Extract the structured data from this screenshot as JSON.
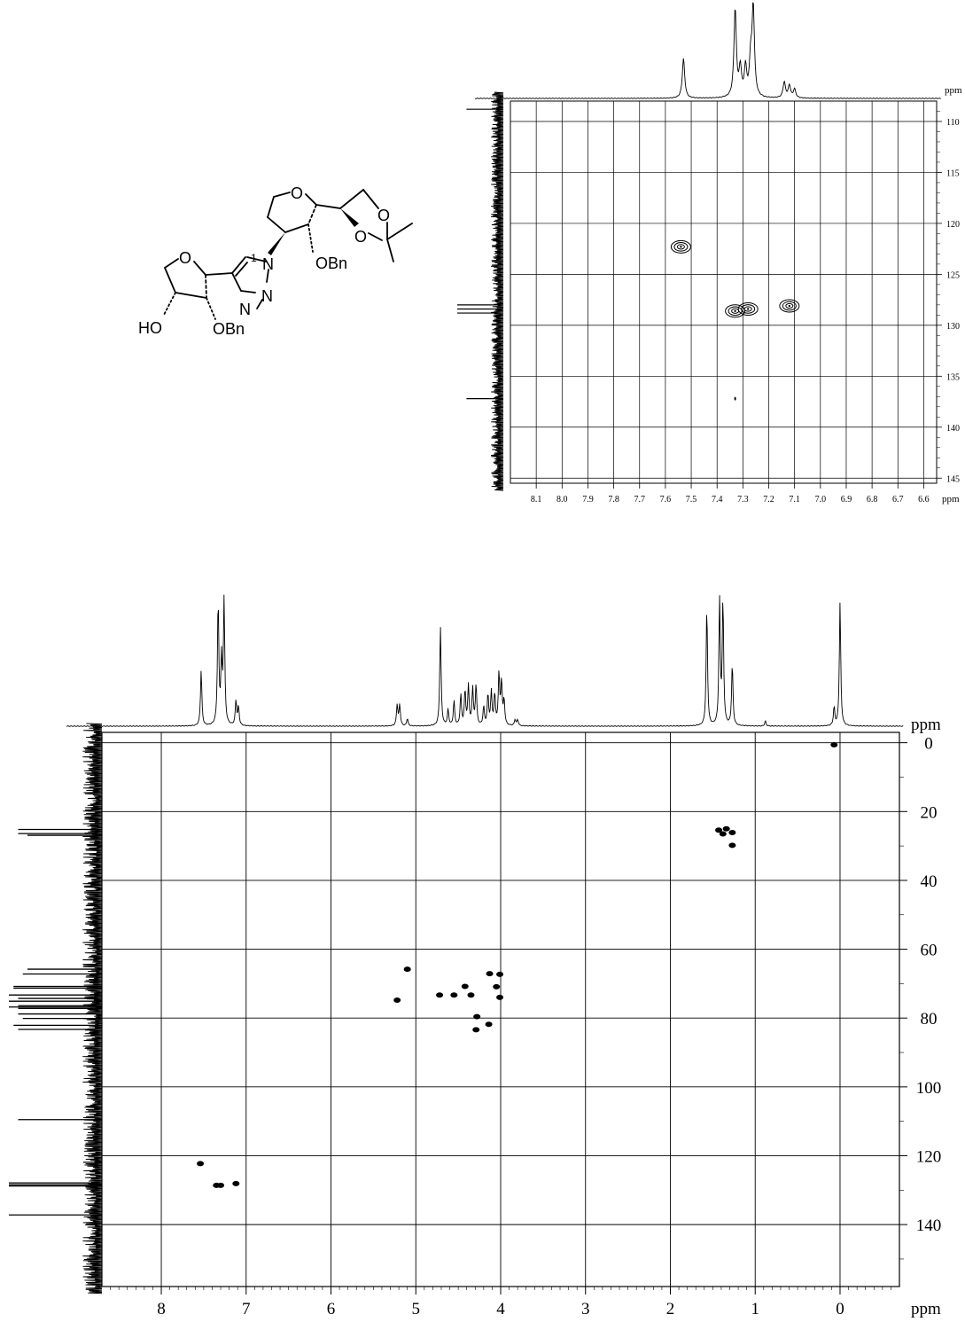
{
  "molecule": {
    "labels": {
      "o_ring_top": "O",
      "o_acetonide_1": "O",
      "o_acetonide_2": "O",
      "n1": "N",
      "n2": "N",
      "n3": "N",
      "one_prime": "1",
      "obn_top": "OBn",
      "o_ring_bottom": "O",
      "ho": "HO",
      "obn_bottom": "OBn"
    }
  },
  "chart_data": [
    {
      "type": "scatter",
      "title": "",
      "xlabel": "ppm",
      "ylabel": "ppm",
      "x_unit": "ppm",
      "y_unit": "ppm",
      "xlim": [
        8.2,
        6.55
      ],
      "ylim": [
        108,
        145.5
      ],
      "x_ticks": [
        "8.1",
        "8.0",
        "7.9",
        "7.8",
        "7.7",
        "7.6",
        "7.5",
        "7.4",
        "7.3",
        "7.2",
        "7.1",
        "7.0",
        "6.9",
        "6.8",
        "6.7",
        "6.6"
      ],
      "y_ticks": [
        "110",
        "115",
        "120",
        "125",
        "130",
        "135",
        "140",
        "145"
      ],
      "grid": true,
      "cross_peaks": [
        {
          "x": 7.54,
          "y": 122.3,
          "style": "contour"
        },
        {
          "x": 7.33,
          "y": 128.6,
          "style": "contour"
        },
        {
          "x": 7.28,
          "y": 128.4,
          "style": "contour"
        },
        {
          "x": 7.12,
          "y": 128.1,
          "style": "contour"
        },
        {
          "x": 7.33,
          "y": 137.2,
          "style": "dot"
        }
      ],
      "projection_x_peaks": [
        {
          "x": 7.53,
          "height": 0.45
        },
        {
          "x": 7.33,
          "height": 1.0
        },
        {
          "x": 7.31,
          "height": 0.32
        },
        {
          "x": 7.29,
          "height": 0.33
        },
        {
          "x": 7.27,
          "height": 0.4
        },
        {
          "x": 7.26,
          "height": 1.0
        },
        {
          "x": 7.14,
          "height": 0.18
        },
        {
          "x": 7.12,
          "height": 0.14
        },
        {
          "x": 7.1,
          "height": 0.1
        }
      ],
      "projection_y_peaks": [
        {
          "y": 108.8,
          "height": 0.8
        },
        {
          "y": 128.0,
          "height": 1.0
        },
        {
          "y": 128.4,
          "height": 1.0
        },
        {
          "y": 128.8,
          "height": 1.0
        },
        {
          "y": 137.2,
          "height": 0.8
        }
      ]
    },
    {
      "type": "scatter",
      "title": "",
      "xlabel": "ppm",
      "ylabel": "ppm",
      "x_unit": "ppm",
      "y_unit": "ppm",
      "xlim": [
        8.7,
        -0.7
      ],
      "ylim": [
        -3,
        158
      ],
      "x_ticks": [
        "8",
        "7",
        "6",
        "5",
        "4",
        "3",
        "2",
        "1",
        "0"
      ],
      "y_ticks": [
        "0",
        "20",
        "40",
        "60",
        "80",
        "100",
        "120",
        "140"
      ],
      "grid": true,
      "cross_peaks": [
        {
          "x": 7.54,
          "y": 122.3
        },
        {
          "x": 7.35,
          "y": 128.6
        },
        {
          "x": 7.3,
          "y": 128.6
        },
        {
          "x": 7.12,
          "y": 128.1
        },
        {
          "x": 1.43,
          "y": 25.4
        },
        {
          "x": 1.38,
          "y": 26.5
        },
        {
          "x": 1.34,
          "y": 25.0
        },
        {
          "x": 1.27,
          "y": 26.1
        },
        {
          "x": 1.27,
          "y": 29.8
        },
        {
          "x": 5.1,
          "y": 65.8
        },
        {
          "x": 5.22,
          "y": 74.8
        },
        {
          "x": 4.72,
          "y": 73.3
        },
        {
          "x": 4.55,
          "y": 73.3
        },
        {
          "x": 4.42,
          "y": 70.8
        },
        {
          "x": 4.35,
          "y": 73.3
        },
        {
          "x": 4.13,
          "y": 67.1
        },
        {
          "x": 4.01,
          "y": 67.3
        },
        {
          "x": 4.05,
          "y": 70.9
        },
        {
          "x": 4.01,
          "y": 74.0
        },
        {
          "x": 4.28,
          "y": 79.6
        },
        {
          "x": 4.29,
          "y": 83.4
        },
        {
          "x": 4.14,
          "y": 81.8
        },
        {
          "x": 0.07,
          "y": 0.6
        }
      ],
      "projection_x_peaks": [
        {
          "x": 7.53,
          "height": 0.45
        },
        {
          "x": 7.33,
          "height": 1.0
        },
        {
          "x": 7.29,
          "height": 0.5
        },
        {
          "x": 7.26,
          "height": 1.0
        },
        {
          "x": 7.12,
          "height": 0.2
        },
        {
          "x": 7.09,
          "height": 0.15
        },
        {
          "x": 5.22,
          "height": 0.17
        },
        {
          "x": 5.19,
          "height": 0.17
        },
        {
          "x": 5.1,
          "height": 0.06
        },
        {
          "x": 4.71,
          "height": 0.8
        },
        {
          "x": 4.62,
          "height": 0.13
        },
        {
          "x": 4.55,
          "height": 0.2
        },
        {
          "x": 4.47,
          "height": 0.25
        },
        {
          "x": 4.42,
          "height": 0.28
        },
        {
          "x": 4.38,
          "height": 0.32
        },
        {
          "x": 4.33,
          "height": 0.3
        },
        {
          "x": 4.29,
          "height": 0.33
        },
        {
          "x": 4.2,
          "height": 0.15
        },
        {
          "x": 4.15,
          "height": 0.25
        },
        {
          "x": 4.11,
          "height": 0.27
        },
        {
          "x": 4.07,
          "height": 0.25
        },
        {
          "x": 4.02,
          "height": 0.42
        },
        {
          "x": 3.99,
          "height": 0.35
        },
        {
          "x": 3.96,
          "height": 0.2
        },
        {
          "x": 3.83,
          "height": 0.05
        },
        {
          "x": 3.8,
          "height": 0.05
        },
        {
          "x": 1.57,
          "height": 0.96
        },
        {
          "x": 1.42,
          "height": 1.0
        },
        {
          "x": 1.38,
          "height": 1.0
        },
        {
          "x": 1.27,
          "height": 0.5
        },
        {
          "x": 0.88,
          "height": 0.04
        },
        {
          "x": 0.07,
          "height": 0.15
        },
        {
          "x": 0.0,
          "height": 1.0
        }
      ],
      "projection_y_peaks": [
        {
          "y": 25.2,
          "height": 0.9
        },
        {
          "y": 26.4,
          "height": 0.9
        },
        {
          "y": 26.9,
          "height": 0.8
        },
        {
          "y": 29.9,
          "height": 0.15
        },
        {
          "y": 65.8,
          "height": 0.8
        },
        {
          "y": 67.2,
          "height": 0.85
        },
        {
          "y": 70.8,
          "height": 0.95
        },
        {
          "y": 71.3,
          "height": 0.95
        },
        {
          "y": 73.3,
          "height": 1.0
        },
        {
          "y": 74.3,
          "height": 0.9
        },
        {
          "y": 75.1,
          "height": 1.0
        },
        {
          "y": 76.4,
          "height": 0.9
        },
        {
          "y": 76.8,
          "height": 1.0
        },
        {
          "y": 77.2,
          "height": 0.9
        },
        {
          "y": 78.8,
          "height": 0.9
        },
        {
          "y": 80.1,
          "height": 0.85
        },
        {
          "y": 82.1,
          "height": 0.95
        },
        {
          "y": 83.3,
          "height": 0.9
        },
        {
          "y": 109.5,
          "height": 0.9
        },
        {
          "y": 121.9,
          "height": 0.2
        },
        {
          "y": 127.9,
          "height": 1.0
        },
        {
          "y": 128.4,
          "height": 1.0
        },
        {
          "y": 128.8,
          "height": 1.0
        },
        {
          "y": 137.2,
          "height": 1.0
        }
      ]
    }
  ]
}
